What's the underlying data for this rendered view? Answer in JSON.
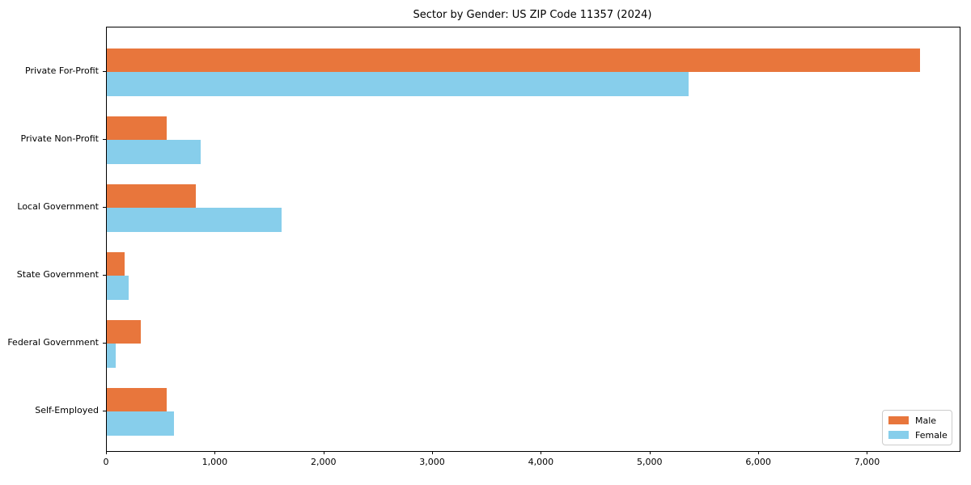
{
  "title": "Sector by Gender: US ZIP Code 11357 (2024)",
  "chart_data": {
    "type": "bar",
    "orientation": "horizontal",
    "title": "Sector by Gender: US ZIP Code 11357 (2024)",
    "categories": [
      "Private For-Profit",
      "Private Non-Profit",
      "Local Government",
      "State Government",
      "Federal Government",
      "Self-Employed"
    ],
    "series": [
      {
        "name": "Male",
        "color": "#E8763C",
        "values": [
          7480,
          550,
          820,
          165,
          310,
          550
        ]
      },
      {
        "name": "Female",
        "color": "#87CEEB",
        "values": [
          5350,
          860,
          1610,
          200,
          85,
          620
        ]
      }
    ],
    "xlabel": "",
    "ylabel": "",
    "xlim": [
      0,
      7845
    ],
    "xticks": [
      0,
      1000,
      2000,
      3000,
      4000,
      5000,
      6000,
      7000
    ],
    "grid": false,
    "legend_position": "lower right",
    "legend_labels": [
      "Male",
      "Female"
    ]
  }
}
